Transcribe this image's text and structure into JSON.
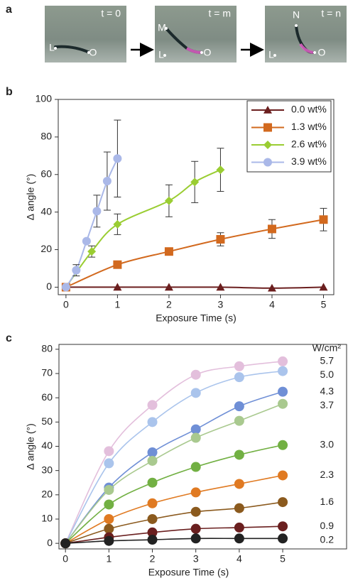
{
  "panel_a": {
    "panel_label": "a",
    "frames": [
      {
        "time": "t = 0",
        "labels": [
          "L",
          "O"
        ]
      },
      {
        "time": "t = m",
        "labels": [
          "M",
          "L",
          "O"
        ]
      },
      {
        "time": "t = n",
        "labels": [
          "N",
          "L",
          "O"
        ]
      }
    ]
  },
  "chart_data": [
    {
      "type": "line",
      "panel_label": "b",
      "x_label": "Exposure Time (s)",
      "y_label": "Δ angle (°)",
      "xlim": [
        -0.15,
        5.2
      ],
      "ylim": [
        -4,
        100
      ],
      "xticks": [
        0,
        1,
        2,
        3,
        4,
        5
      ],
      "yticks": [
        0,
        20,
        40,
        60,
        80,
        100
      ],
      "legend": "upper right",
      "series": [
        {
          "name": "0.0 wt%",
          "color": "#6b1f1f",
          "marker": "triangle",
          "x": [
            0,
            1,
            2,
            3,
            4,
            5
          ],
          "values": [
            0,
            0,
            0,
            0,
            -0.5,
            0
          ]
        },
        {
          "name": "1.3 wt%",
          "color": "#d2691e",
          "marker": "square",
          "x": [
            0,
            1,
            2,
            3,
            4,
            5
          ],
          "values": [
            0,
            12,
            19,
            25.5,
            31,
            36
          ],
          "errors": [
            0,
            1,
            1,
            3.5,
            5,
            6
          ]
        },
        {
          "name": "2.6 wt%",
          "color": "#9acd32",
          "marker": "diamond",
          "x": [
            0,
            0.5,
            1,
            2,
            2.5,
            3
          ],
          "values": [
            0,
            19,
            33.5,
            46,
            56,
            62.5
          ],
          "errors": [
            0,
            3,
            5.5,
            8.5,
            11,
            11.5
          ]
        },
        {
          "name": "3.9 wt%",
          "color": "#aab8e8",
          "marker": "circle",
          "x": [
            0,
            0.2,
            0.4,
            0.6,
            0.8,
            1
          ],
          "values": [
            0,
            9,
            24.5,
            40.5,
            56.5,
            68.5
          ],
          "errors": [
            0,
            3,
            0,
            8.5,
            15.5,
            20.5
          ]
        }
      ]
    },
    {
      "type": "line",
      "panel_label": "c",
      "x_label": "Exposure Time (s)",
      "y_label": "Δ angle (°)",
      "xlim": [
        -0.15,
        6.47
      ],
      "ylim": [
        -2.3,
        82
      ],
      "xticks": [
        0,
        1,
        2,
        3,
        4,
        5
      ],
      "yticks": [
        0,
        10,
        20,
        30,
        40,
        50,
        60,
        70,
        80
      ],
      "legend": "right",
      "legend_title": "W/cm²",
      "x": [
        0,
        1,
        2,
        3,
        4,
        5
      ],
      "series": [
        {
          "name": "5.7",
          "color": "#e3bfdc",
          "marker": "circle",
          "values": [
            0,
            38,
            57,
            69.5,
            73,
            75
          ]
        },
        {
          "name": "5.0",
          "color": "#aac4ec",
          "marker": "circle",
          "values": [
            0,
            33,
            50,
            62,
            68.5,
            71
          ]
        },
        {
          "name": "4.3",
          "color": "#6f8fd6",
          "marker": "circle",
          "values": [
            0,
            23,
            37.5,
            47,
            56.5,
            62.5
          ]
        },
        {
          "name": "3.7",
          "color": "#a9c98f",
          "marker": "circle",
          "values": [
            0,
            22,
            34,
            43.5,
            50.5,
            57.5
          ]
        },
        {
          "name": "3.0",
          "color": "#72b043",
          "marker": "circle",
          "values": [
            0,
            16,
            25,
            31.5,
            36.5,
            40.5
          ]
        },
        {
          "name": "2.3",
          "color": "#e07a22",
          "marker": "circle",
          "values": [
            0,
            10,
            16.5,
            21,
            24.5,
            28
          ]
        },
        {
          "name": "1.6",
          "color": "#8b5a1e",
          "marker": "circle",
          "values": [
            0,
            6,
            10,
            13,
            14.5,
            17
          ]
        },
        {
          "name": "0.9",
          "color": "#6a1f1f",
          "marker": "circle",
          "values": [
            0,
            2.5,
            4.5,
            6,
            6.5,
            7
          ]
        },
        {
          "name": "0.2",
          "color": "#222222",
          "marker": "circle",
          "values": [
            0,
            1,
            1.5,
            2,
            2,
            2
          ]
        }
      ]
    }
  ]
}
